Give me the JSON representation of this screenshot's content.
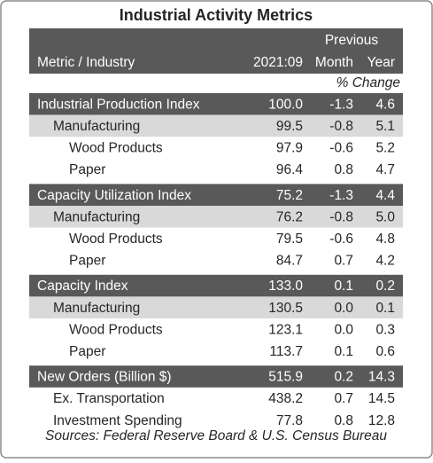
{
  "header": {
    "title": "Industrial Activity Metrics",
    "previous": "Previous",
    "columns": [
      "Metric / Industry",
      "2021:09",
      "Month",
      "Year"
    ],
    "change_label": "% Change"
  },
  "table": {
    "sections": [
      {
        "label": "Industrial Production Index",
        "values": [
          "100.0",
          "-1.3",
          "4.6"
        ],
        "rows": [
          {
            "label": "Manufacturing",
            "values": [
              "99.5",
              "-0.8",
              "5.1"
            ]
          },
          {
            "label": "Wood Products",
            "values": [
              "97.9",
              "-0.6",
              "5.2"
            ]
          },
          {
            "label": "Paper",
            "values": [
              "96.4",
              "0.8",
              "4.7"
            ]
          }
        ]
      },
      {
        "label": "Capacity Utilization Index",
        "values": [
          "75.2",
          "-1.3",
          "4.4"
        ],
        "rows": [
          {
            "label": "Manufacturing",
            "values": [
              "76.2",
              "-0.8",
              "5.0"
            ]
          },
          {
            "label": "Wood Products",
            "values": [
              "79.5",
              "-0.6",
              "4.8"
            ]
          },
          {
            "label": "Paper",
            "values": [
              "84.7",
              "0.7",
              "4.2"
            ]
          }
        ]
      },
      {
        "label": "Capacity Index",
        "values": [
          "133.0",
          "0.1",
          "0.2"
        ],
        "rows": [
          {
            "label": "Manufacturing",
            "values": [
              "130.5",
              "0.0",
              "0.1"
            ]
          },
          {
            "label": "Wood Products",
            "values": [
              "123.1",
              "0.0",
              "0.3"
            ]
          },
          {
            "label": "Paper",
            "values": [
              "113.7",
              "0.1",
              "0.6"
            ]
          }
        ]
      },
      {
        "label": "New Orders (Billion $)",
        "values": [
          "515.9",
          "0.2",
          "14.3"
        ],
        "rows": [
          {
            "label": "Ex. Transportation",
            "values": [
              "438.2",
              "0.7",
              "14.5"
            ]
          },
          {
            "label": "Investment Spending",
            "values": [
              "77.8",
              "0.8",
              "12.8"
            ]
          }
        ]
      }
    ]
  },
  "footer": {
    "source": "Sources: Federal Reserve Board & U.S. Census Bureau"
  }
}
